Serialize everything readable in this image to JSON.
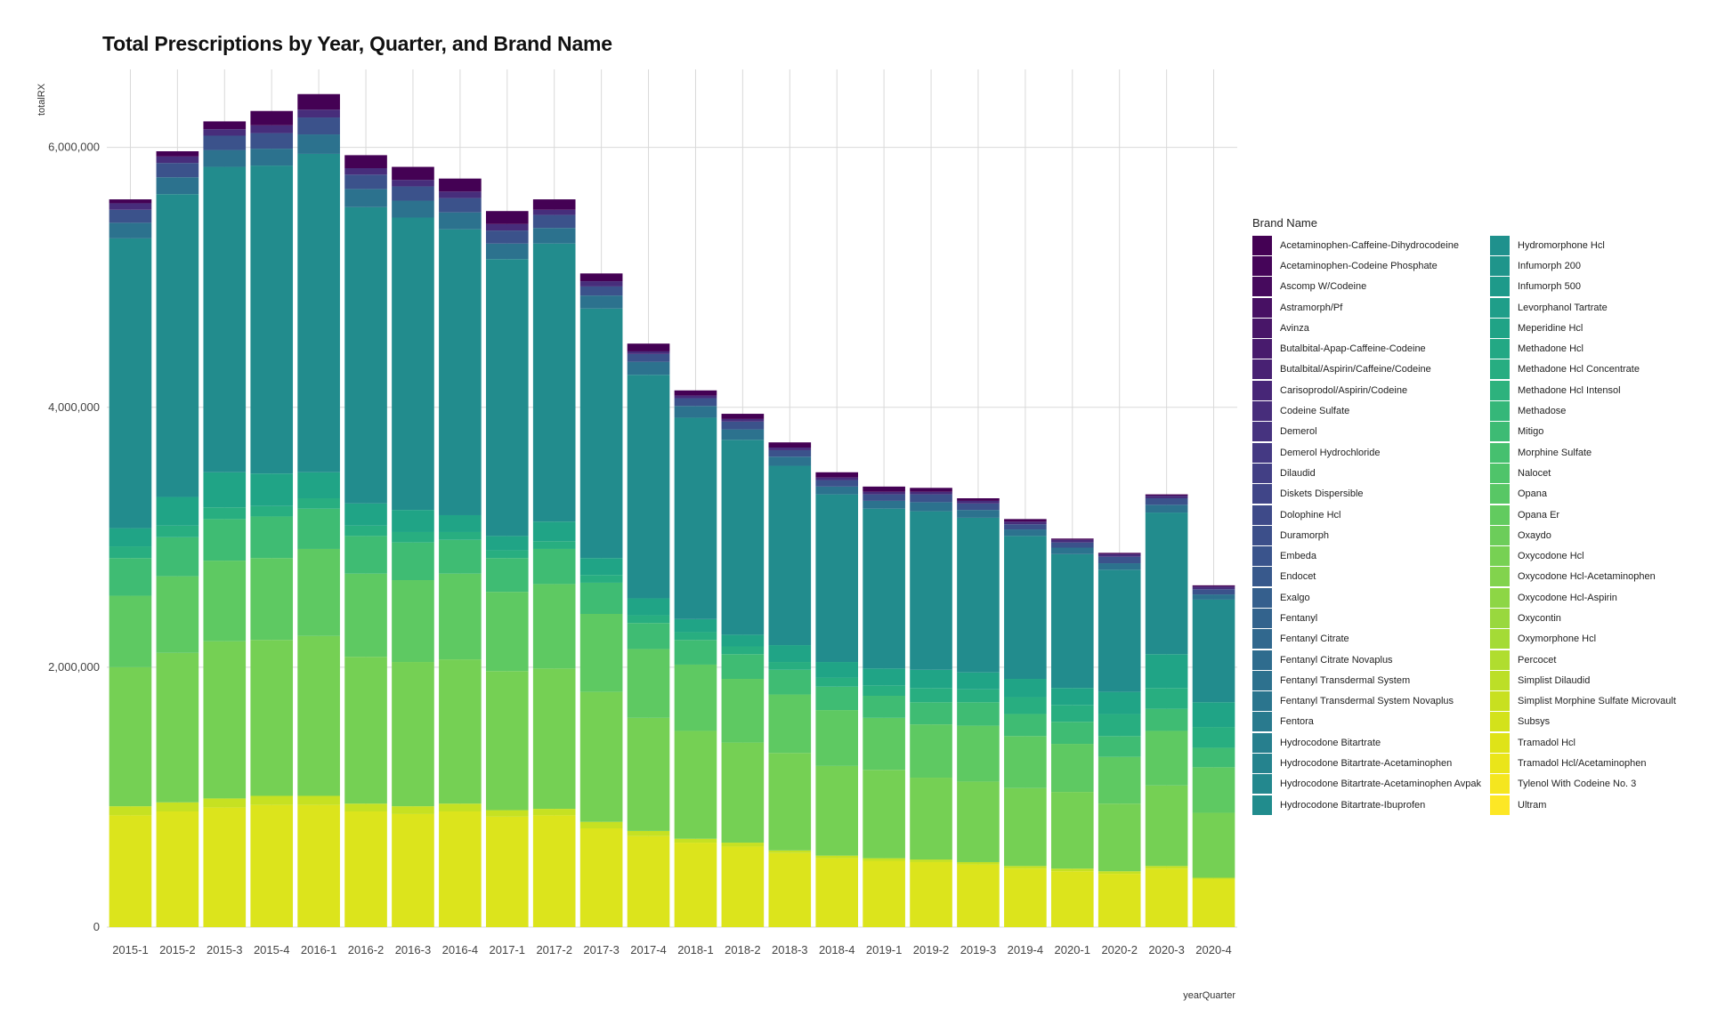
{
  "chart_data": {
    "type": "bar",
    "stacked": true,
    "title": "Total Prescriptions by Year, Quarter, and Brand Name",
    "xlabel": "yearQuarter",
    "ylabel": "totalRX",
    "ylim": [
      0,
      6600000
    ],
    "yticks": [
      0,
      2000000,
      4000000,
      6000000
    ],
    "ytick_labels": [
      "0",
      "2,000,000",
      "4,000,000",
      "6,000,000"
    ],
    "grid": true,
    "legend_title": "Brand Name",
    "legend_position": "right",
    "categories": [
      "2015-1",
      "2015-2",
      "2015-3",
      "2015-4",
      "2016-1",
      "2016-2",
      "2016-3",
      "2016-4",
      "2017-1",
      "2017-2",
      "2017-3",
      "2017-4",
      "2018-1",
      "2018-2",
      "2018-3",
      "2018-4",
      "2019-1",
      "2019-2",
      "2019-3",
      "2019-4",
      "2020-1",
      "2020-2",
      "2020-3",
      "2020-4"
    ],
    "totals": [
      5550000,
      5880000,
      6080000,
      6120000,
      6320000,
      5890000,
      5760000,
      5700000,
      5510000,
      5550000,
      4940000,
      4460000,
      4180000,
      4000000,
      3780000,
      3570000,
      3440000,
      3450000,
      3370000,
      3180000,
      3020000,
      2990000,
      3420000,
      2850000
    ],
    "segments": [
      {
        "name": "Ultram",
        "color": "#dce41c",
        "values": [
          860000,
          890000,
          920000,
          940000,
          940000,
          890000,
          870000,
          890000,
          850000,
          860000,
          760000,
          700000,
          650000,
          620000,
          570000,
          530000,
          510000,
          500000,
          480000,
          450000,
          430000,
          410000,
          450000,
          370000
        ]
      },
      {
        "name": "Tramadol Hcl",
        "color": "#c6e122",
        "values": [
          70000,
          70000,
          70000,
          70000,
          70000,
          60000,
          60000,
          60000,
          50000,
          50000,
          50000,
          40000,
          30000,
          30000,
          20000,
          20000,
          20000,
          20000,
          20000,
          20000,
          20000,
          20000,
          20000,
          10000
        ]
      },
      {
        "name": "Oxycodone Hcl-Acetaminophen",
        "color": "#75d054",
        "values": [
          1070000,
          1150000,
          1210000,
          1200000,
          1230000,
          1130000,
          1110000,
          1110000,
          1070000,
          1080000,
          1000000,
          870000,
          830000,
          770000,
          750000,
          690000,
          680000,
          630000,
          620000,
          600000,
          590000,
          520000,
          620000,
          500000
        ]
      },
      {
        "name": "Oxycodone Hcl",
        "color": "#5ec962",
        "values": [
          550000,
          590000,
          620000,
          630000,
          670000,
          640000,
          630000,
          660000,
          610000,
          650000,
          600000,
          530000,
          510000,
          490000,
          450000,
          430000,
          400000,
          410000,
          430000,
          400000,
          370000,
          360000,
          420000,
          350000
        ]
      },
      {
        "name": "Morphine Sulfate",
        "color": "#3fbc73",
        "values": [
          290000,
          300000,
          320000,
          320000,
          310000,
          290000,
          290000,
          260000,
          260000,
          270000,
          240000,
          200000,
          190000,
          190000,
          190000,
          180000,
          170000,
          170000,
          180000,
          170000,
          170000,
          160000,
          170000,
          150000
        ]
      },
      {
        "name": "Methadone Hcl",
        "color": "#28ae80",
        "values": [
          90000,
          90000,
          90000,
          80000,
          80000,
          80000,
          80000,
          60000,
          60000,
          60000,
          60000,
          60000,
          60000,
          60000,
          60000,
          70000,
          80000,
          110000,
          100000,
          130000,
          130000,
          170000,
          160000,
          160000
        ]
      },
      {
        "name": "Hydromorphone Hcl",
        "color": "#20a486",
        "values": [
          140000,
          220000,
          270000,
          250000,
          200000,
          170000,
          170000,
          130000,
          110000,
          150000,
          130000,
          130000,
          100000,
          90000,
          130000,
          120000,
          130000,
          140000,
          130000,
          140000,
          130000,
          170000,
          260000,
          190000
        ]
      },
      {
        "name": "Hydrocodone Bitartrate-Acetaminophen",
        "color": "#228c8d",
        "values": [
          2230000,
          2330000,
          2350000,
          2370000,
          2450000,
          2280000,
          2250000,
          2200000,
          2130000,
          2140000,
          1920000,
          1720000,
          1550000,
          1500000,
          1380000,
          1290000,
          1230000,
          1220000,
          1190000,
          1100000,
          1030000,
          940000,
          1090000,
          790000
        ]
      },
      {
        "name": "Fentanyl Transdermal System",
        "color": "#2c728e",
        "values": [
          120000,
          130000,
          130000,
          130000,
          150000,
          140000,
          130000,
          130000,
          120000,
          120000,
          100000,
          100000,
          90000,
          80000,
          70000,
          60000,
          60000,
          70000,
          60000,
          50000,
          50000,
          50000,
          60000,
          40000
        ]
      },
      {
        "name": "Endocet",
        "color": "#3b528b",
        "values": [
          100000,
          110000,
          110000,
          120000,
          130000,
          110000,
          110000,
          110000,
          100000,
          100000,
          70000,
          60000,
          60000,
          60000,
          50000,
          50000,
          50000,
          60000,
          50000,
          40000,
          40000,
          50000,
          50000,
          40000
        ]
      },
      {
        "name": "Dilaudid",
        "color": "#472d7b",
        "values": [
          50000,
          50000,
          50000,
          60000,
          60000,
          50000,
          50000,
          50000,
          50000,
          40000,
          40000,
          20000,
          20000,
          20000,
          20000,
          20000,
          20000,
          20000,
          20000,
          20000,
          20000,
          20000,
          20000,
          20000
        ]
      },
      {
        "name": "Acetaminophen-Codeine Phosphate",
        "color": "#440154",
        "values": [
          30000,
          40000,
          60000,
          110000,
          120000,
          100000,
          100000,
          100000,
          100000,
          80000,
          60000,
          60000,
          40000,
          40000,
          40000,
          40000,
          40000,
          30000,
          20000,
          20000,
          10000,
          10000,
          10000,
          10000
        ]
      }
    ]
  },
  "legend_items": [
    {
      "label": "Acetaminophen-Caffeine-Dihydrocodeine",
      "color": "#440154"
    },
    {
      "label": "Acetaminophen-Codeine Phosphate",
      "color": "#450559"
    },
    {
      "label": "Ascomp W/Codeine",
      "color": "#460a5d"
    },
    {
      "label": "Astramorph/Pf",
      "color": "#471063"
    },
    {
      "label": "Avinza",
      "color": "#481668"
    },
    {
      "label": "Butalbital-Apap-Caffeine-Codeine",
      "color": "#481b6d"
    },
    {
      "label": "Butalbital/Aspirin/Caffeine/Codeine",
      "color": "#482173"
    },
    {
      "label": "Carisoprodol/Aspirin/Codeine",
      "color": "#472677"
    },
    {
      "label": "Codeine Sulfate",
      "color": "#472d7b"
    },
    {
      "label": "Demerol",
      "color": "#46337f"
    },
    {
      "label": "Demerol Hydrochloride",
      "color": "#443983"
    },
    {
      "label": "Dilaudid",
      "color": "#423f85"
    },
    {
      "label": "Diskets Dispersible",
      "color": "#404588"
    },
    {
      "label": "Dolophine Hcl",
      "color": "#3e4a89"
    },
    {
      "label": "Duramorph",
      "color": "#3c4f8a"
    },
    {
      "label": "Embeda",
      "color": "#3a548c"
    },
    {
      "label": "Endocet",
      "color": "#38598c"
    },
    {
      "label": "Exalgo",
      "color": "#355f8d"
    },
    {
      "label": "Fentanyl",
      "color": "#33638d"
    },
    {
      "label": "Fentanyl Citrate",
      "color": "#31688e"
    },
    {
      "label": "Fentanyl Citrate Novaplus",
      "color": "#2f6c8e"
    },
    {
      "label": "Fentanyl Transdermal System",
      "color": "#2d718e"
    },
    {
      "label": "Fentanyl Transdermal System Novaplus",
      "color": "#2b758e"
    },
    {
      "label": "Fentora",
      "color": "#297a8e"
    },
    {
      "label": "Hydrocodone Bitartrate",
      "color": "#277f8e"
    },
    {
      "label": "Hydrocodone Bitartrate-Acetaminophen",
      "color": "#25838e"
    },
    {
      "label": "Hydrocodone Bitartrate-Acetaminophen Avpak",
      "color": "#23888e"
    },
    {
      "label": "Hydrocodone Bitartrate-Ibuprofen",
      "color": "#218c8d"
    },
    {
      "label": "Hydromorphone Hcl",
      "color": "#1f918d"
    },
    {
      "label": "Infumorph 200",
      "color": "#1f958b"
    },
    {
      "label": "Infumorph 500",
      "color": "#1e9a8a"
    },
    {
      "label": "Levorphanol Tartrate",
      "color": "#1f9e89"
    },
    {
      "label": "Meperidine Hcl",
      "color": "#20a386"
    },
    {
      "label": "Methadone Hcl",
      "color": "#23a884"
    },
    {
      "label": "Methadone Hcl Concentrate",
      "color": "#27ad81"
    },
    {
      "label": "Methadone Hcl Intensol",
      "color": "#2db27d"
    },
    {
      "label": "Methadose",
      "color": "#35b779"
    },
    {
      "label": "Mitigo",
      "color": "#3dbb74"
    },
    {
      "label": "Morphine Sulfate",
      "color": "#46c06f"
    },
    {
      "label": "Nalocet",
      "color": "#4fc46a"
    },
    {
      "label": "Opana",
      "color": "#58c765"
    },
    {
      "label": "Opana Er",
      "color": "#62cb5f"
    },
    {
      "label": "Oxaydo",
      "color": "#6ccd5a"
    },
    {
      "label": "Oxycodone Hcl",
      "color": "#77d153"
    },
    {
      "label": "Oxycodone Hcl-Acetaminophen",
      "color": "#82d34d"
    },
    {
      "label": "Oxycodone Hcl-Aspirin",
      "color": "#8dd645"
    },
    {
      "label": "Oxycontin",
      "color": "#99d83e"
    },
    {
      "label": "Oxymorphone Hcl",
      "color": "#a4db36"
    },
    {
      "label": "Percocet",
      "color": "#b0dd2f"
    },
    {
      "label": "Simplist Dilaudid",
      "color": "#bcdf27"
    },
    {
      "label": "Simplist Morphine Sulfate Microvault",
      "color": "#c8e020"
    },
    {
      "label": "Subsys",
      "color": "#d3e21b"
    },
    {
      "label": "Tramadol Hcl",
      "color": "#dfe318"
    },
    {
      "label": "Tramadol Hcl/Acetaminophen",
      "color": "#eae51a"
    },
    {
      "label": "Tylenol With Codeine No. 3",
      "color": "#f5e61f"
    },
    {
      "label": "Ultram",
      "color": "#fde725"
    }
  ]
}
